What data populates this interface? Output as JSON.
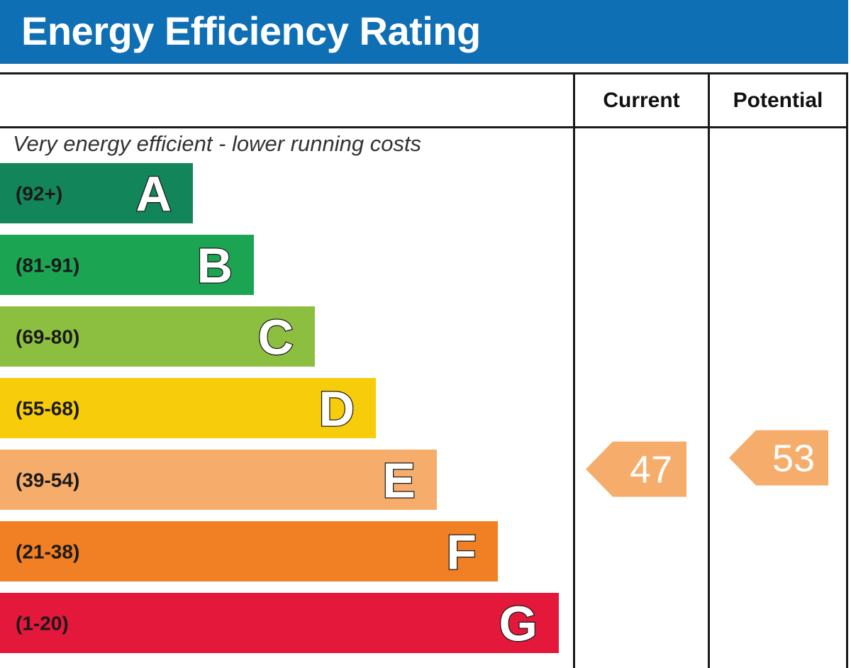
{
  "header": {
    "title": "Energy Efficiency Rating"
  },
  "columns": {
    "current": "Current",
    "potential": "Potential"
  },
  "chart_data": {
    "type": "bar",
    "title": "Energy Efficiency Rating",
    "caption_top": "Very energy efficient - lower running costs",
    "bands": [
      {
        "letter": "A",
        "range": "(92+)",
        "color": "#12865a"
      },
      {
        "letter": "B",
        "range": "(81-91)",
        "color": "#1ba553"
      },
      {
        "letter": "C",
        "range": "(69-80)",
        "color": "#8cbf3f"
      },
      {
        "letter": "D",
        "range": "(55-68)",
        "color": "#f6cc0b"
      },
      {
        "letter": "E",
        "range": "(39-54)",
        "color": "#f6ad6c"
      },
      {
        "letter": "F",
        "range": "(21-38)",
        "color": "#f17f23"
      },
      {
        "letter": "G",
        "range": "(1-20)",
        "color": "#e3183b"
      }
    ],
    "current": {
      "value": 47,
      "band": "E",
      "color": "#f6ad6c"
    },
    "potential": {
      "value": 53,
      "band": "E",
      "color": "#f6ad6c"
    },
    "scale": [
      1,
      100
    ]
  }
}
